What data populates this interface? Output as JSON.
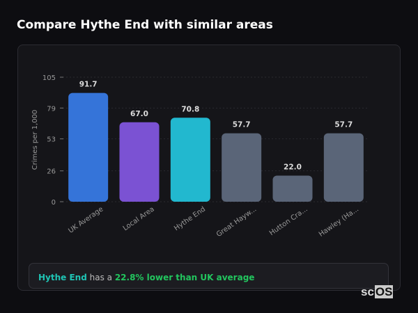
{
  "title": "Compare Hythe End with similar areas",
  "chart_data": {
    "type": "bar",
    "ylabel": "Crimes per 1,000",
    "ylim": [
      0,
      105
    ],
    "yticks": [
      0,
      26,
      53,
      79,
      105
    ],
    "grid": true,
    "categories": [
      "UK Average",
      "Local Area",
      "Hythe End",
      "Great Hayw...",
      "Hutton Cra...",
      "Hawley (Ha..."
    ],
    "values": [
      91.7,
      67.0,
      70.8,
      57.7,
      22.0,
      57.7
    ],
    "value_labels": [
      "91.7",
      "67.0",
      "70.8",
      "57.7",
      "22.0",
      "57.7"
    ],
    "colors": [
      "#3574d9",
      "#7b52d3",
      "#22b8cf",
      "#5a6578",
      "#5a6578",
      "#5a6578"
    ]
  },
  "summary": {
    "area": "Hythe End",
    "middle": " has a ",
    "highlight": "22.8% lower than UK average"
  },
  "logo": {
    "prefix": "sc",
    "boxed": "OS"
  }
}
